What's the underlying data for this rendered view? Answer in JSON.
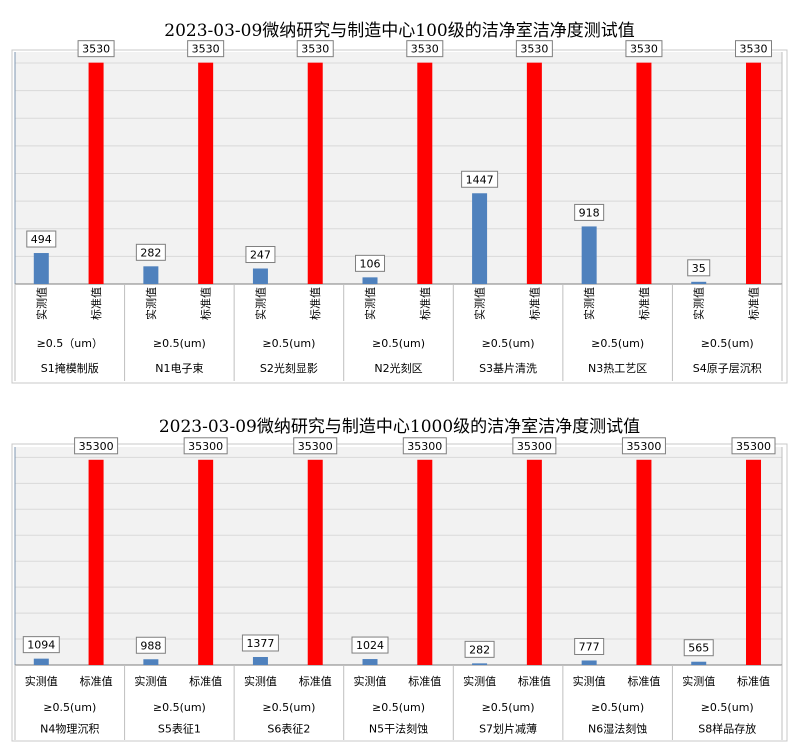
{
  "colors": {
    "measured": "#4f81bd",
    "standard": "#ff0000",
    "plot_bg": "#f2f2f2",
    "grid": "#d9d9d9",
    "frame": "#7f97b2",
    "label_border": "#7f7f7f"
  },
  "chart_data": [
    {
      "type": "bar",
      "title": "2023-03-09微纳研究与制造中心100级的洁净室洁净度测试值",
      "series": [
        {
          "name": "实测值",
          "values": [
            494,
            282,
            247,
            106,
            1447,
            918,
            35
          ]
        },
        {
          "name": "标准值",
          "values": [
            3530,
            3530,
            3530,
            3530,
            3530,
            3530,
            3530
          ]
        }
      ],
      "categories": [
        "S1掩模制版",
        "N1电子束",
        "S2光刻显影",
        "N2光刻区",
        "S3基片清洗",
        "N3热工艺区",
        "S4原子层沉积"
      ],
      "particle_sizes": [
        "≥0.5（um）",
        "≥0.5(um)",
        "≥0.5(um)",
        "≥0.5(um)",
        "≥0.5(um)",
        "≥0.5(um)",
        "≥0.5(um)"
      ],
      "ylim": [
        0,
        3700
      ],
      "grid": true,
      "data_labels": true,
      "bar_label_orientation": "vertical"
    },
    {
      "type": "bar",
      "title": "2023-03-09微纳研究与制造中心1000级的洁净室洁净度测试值",
      "series": [
        {
          "name": "实测值",
          "values": [
            1094,
            988,
            1377,
            1024,
            282,
            777,
            565
          ]
        },
        {
          "name": "标准值",
          "values": [
            35300,
            35300,
            35300,
            35300,
            35300,
            35300,
            35300
          ]
        }
      ],
      "categories": [
        "N4物理沉积",
        "S5表征1",
        "S6表征2",
        "N5干法刻蚀",
        "S7划片减薄",
        "N6湿法刻蚀",
        "S8样品存放"
      ],
      "particle_sizes": [
        "≥0.5(um)",
        "≥0.5(um)",
        "≥0.5(um)",
        "≥0.5(um)",
        "≥0.5(um)",
        "≥0.5(um)",
        "≥0.5(um)"
      ],
      "ylim": [
        0,
        37500
      ],
      "grid": true,
      "data_labels": true,
      "bar_label_orientation": "horizontal"
    }
  ]
}
